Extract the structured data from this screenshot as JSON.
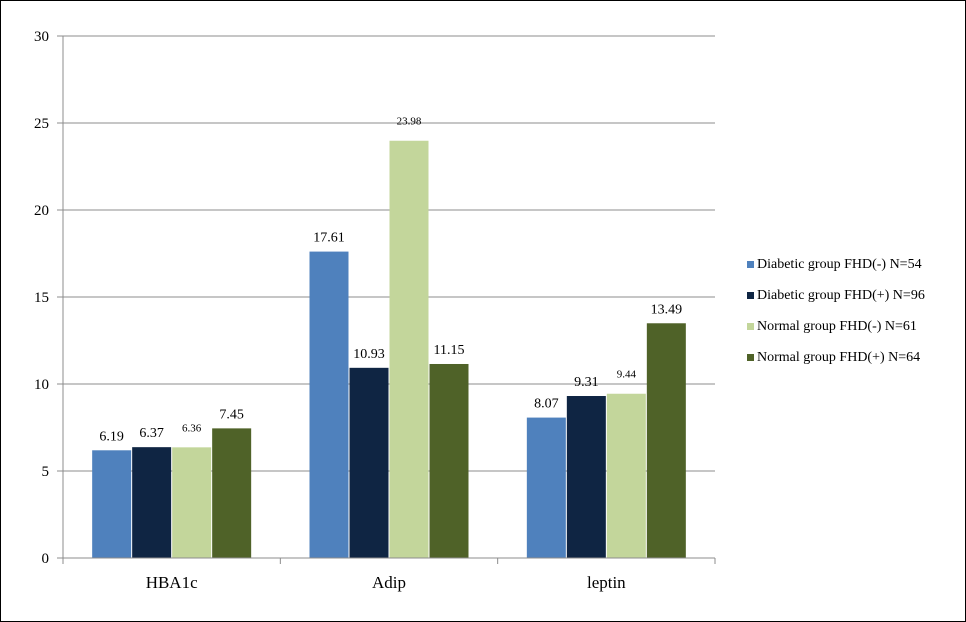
{
  "chart_data": {
    "type": "bar",
    "categories": [
      "HBA1c",
      "Adip",
      "leptin"
    ],
    "series": [
      {
        "name": "Diabetic group FHD(-) N=54",
        "color": "#4f81bd",
        "values": [
          6.19,
          17.61,
          8.07
        ],
        "labels": [
          "6.19",
          "17.61",
          "8.07"
        ]
      },
      {
        "name": "Diabetic group FHD(+) N=96",
        "color": "#0f2543",
        "values": [
          6.37,
          10.93,
          9.31
        ],
        "labels": [
          "6.37",
          "10.93",
          "9.31"
        ]
      },
      {
        "name": "Normal group FHD(-) N=61",
        "color": "#c3d69b",
        "values": [
          6.36,
          23.98,
          9.44
        ],
        "labels": [
          "6.36",
          "23.98",
          "9.44"
        ]
      },
      {
        "name": "Normal group FHD(+) N=64",
        "color": "#4f6228",
        "values": [
          7.45,
          11.15,
          13.49
        ],
        "labels": [
          "7.45",
          "11.15",
          "13.49"
        ]
      }
    ],
    "yticks": [
      "0",
      "5",
      "10",
      "15",
      "20",
      "25",
      "30"
    ],
    "ylim": [
      0,
      30
    ],
    "grid": true,
    "legend_position": "right"
  }
}
